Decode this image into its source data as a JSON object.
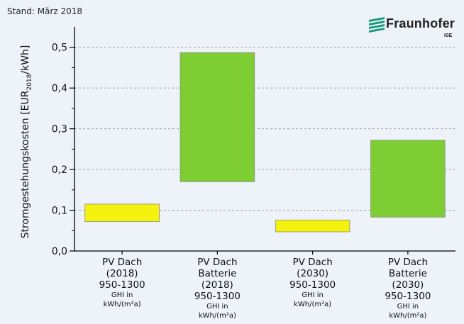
{
  "stand_label": "Stand: März 2018",
  "logo": {
    "name": "Fraunhofer",
    "sub": "ISE",
    "color": "#1a9a7a"
  },
  "chart_data": {
    "type": "bar",
    "subtype": "floating-range",
    "ylabel_main": "Stromgestehungskosten [EUR",
    "ylabel_sub": "2018",
    "ylabel_end": "/kWh]",
    "ylim": [
      0,
      0.55
    ],
    "yticks": [
      0.0,
      0.1,
      0.2,
      0.3,
      0.4,
      0.5
    ],
    "ytick_labels": [
      "0,0",
      "0,1",
      "0,2",
      "0,3",
      "0,4",
      "0,5"
    ],
    "grid": "horizontal-dashed",
    "categories": [
      {
        "lines": [
          "PV Dach",
          "(2018)",
          "950-1300"
        ],
        "small": [
          "GHI in",
          "kWh/(m²a)"
        ]
      },
      {
        "lines": [
          "PV Dach",
          "Batterie",
          "(2018)",
          "950-1300"
        ],
        "small": [
          "GHI in",
          "kWh/(m²a)"
        ]
      },
      {
        "lines": [
          "PV Dach",
          "(2030)",
          "950-1300"
        ],
        "small": [
          "GHI in",
          "kWh/(m²a)"
        ]
      },
      {
        "lines": [
          "PV Dach",
          "Batterie",
          "(2030)",
          "950-1300"
        ],
        "small": [
          "GHI in",
          "kWh/(m²a)"
        ]
      }
    ],
    "ranges": [
      {
        "low": 0.072,
        "high": 0.115,
        "color": "#f5f20f"
      },
      {
        "low": 0.17,
        "high": 0.487,
        "color": "#7dcd33"
      },
      {
        "low": 0.047,
        "high": 0.076,
        "color": "#f5f20f"
      },
      {
        "low": 0.083,
        "high": 0.272,
        "color": "#7dcd33"
      }
    ]
  }
}
